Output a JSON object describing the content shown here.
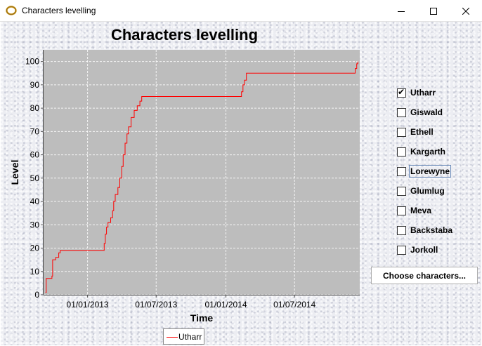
{
  "window": {
    "title": "Characters levelling",
    "icon": "ring-icon"
  },
  "chart_data": {
    "type": "line",
    "title": "Characters levelling",
    "xlabel": "Time",
    "ylabel": "Level",
    "ylim": [
      0,
      105
    ],
    "xlim": [
      "2012-09-07",
      "2014-12-20"
    ],
    "y_ticks": [
      0,
      10,
      20,
      30,
      40,
      50,
      60,
      70,
      80,
      90,
      100
    ],
    "x_ticks": [
      "01/01/2013",
      "01/07/2013",
      "01/01/2014",
      "01/07/2014"
    ],
    "x_tick_dates": [
      "2013-01-01",
      "2013-07-01",
      "2014-01-01",
      "2014-07-01"
    ],
    "grid": true,
    "background": "#bdbdbd",
    "legend_position": "bottom",
    "series": [
      {
        "name": "Utharr",
        "color": "#ff0000",
        "points": [
          [
            "2012-09-12",
            1
          ],
          [
            "2012-09-14",
            7
          ],
          [
            "2012-09-29",
            8
          ],
          [
            "2012-10-01",
            15
          ],
          [
            "2012-10-09",
            16
          ],
          [
            "2012-10-17",
            18
          ],
          [
            "2012-10-21",
            19
          ],
          [
            "2013-01-18",
            19
          ],
          [
            "2013-02-12",
            19
          ],
          [
            "2013-02-14",
            22
          ],
          [
            "2013-02-17",
            26
          ],
          [
            "2013-02-20",
            29
          ],
          [
            "2013-02-24",
            31
          ],
          [
            "2013-03-03",
            33
          ],
          [
            "2013-03-08",
            36
          ],
          [
            "2013-03-11",
            40
          ],
          [
            "2013-03-15",
            43
          ],
          [
            "2013-03-22",
            46
          ],
          [
            "2013-03-27",
            50
          ],
          [
            "2013-04-01",
            55
          ],
          [
            "2013-04-05",
            60
          ],
          [
            "2013-04-10",
            65
          ],
          [
            "2013-04-15",
            69
          ],
          [
            "2013-04-19",
            72
          ],
          [
            "2013-04-26",
            76
          ],
          [
            "2013-05-04",
            79
          ],
          [
            "2013-05-12",
            81
          ],
          [
            "2013-05-19",
            83
          ],
          [
            "2013-05-24",
            85
          ],
          [
            "2014-02-07",
            85
          ],
          [
            "2014-02-11",
            87
          ],
          [
            "2014-02-15",
            90
          ],
          [
            "2014-02-19",
            92
          ],
          [
            "2014-02-24",
            95
          ],
          [
            "2014-12-04",
            95
          ],
          [
            "2014-12-08",
            97
          ],
          [
            "2014-12-12",
            99
          ],
          [
            "2014-12-15",
            100
          ]
        ]
      }
    ]
  },
  "legend": {
    "items": [
      {
        "label": "Utharr",
        "color": "#ff0000"
      }
    ]
  },
  "characters": [
    {
      "label": "Utharr",
      "checked": true
    },
    {
      "label": "Giswald",
      "checked": false
    },
    {
      "label": "Ethell",
      "checked": false
    },
    {
      "label": "Kargarth",
      "checked": false
    },
    {
      "label": "Lorewyne",
      "checked": false,
      "focused": true
    },
    {
      "label": "Glumlug",
      "checked": false
    },
    {
      "label": "Meva",
      "checked": false
    },
    {
      "label": "Backstaba",
      "checked": false
    },
    {
      "label": "Jorkoll",
      "checked": false
    }
  ],
  "choose_button": {
    "label": "Choose characters..."
  }
}
